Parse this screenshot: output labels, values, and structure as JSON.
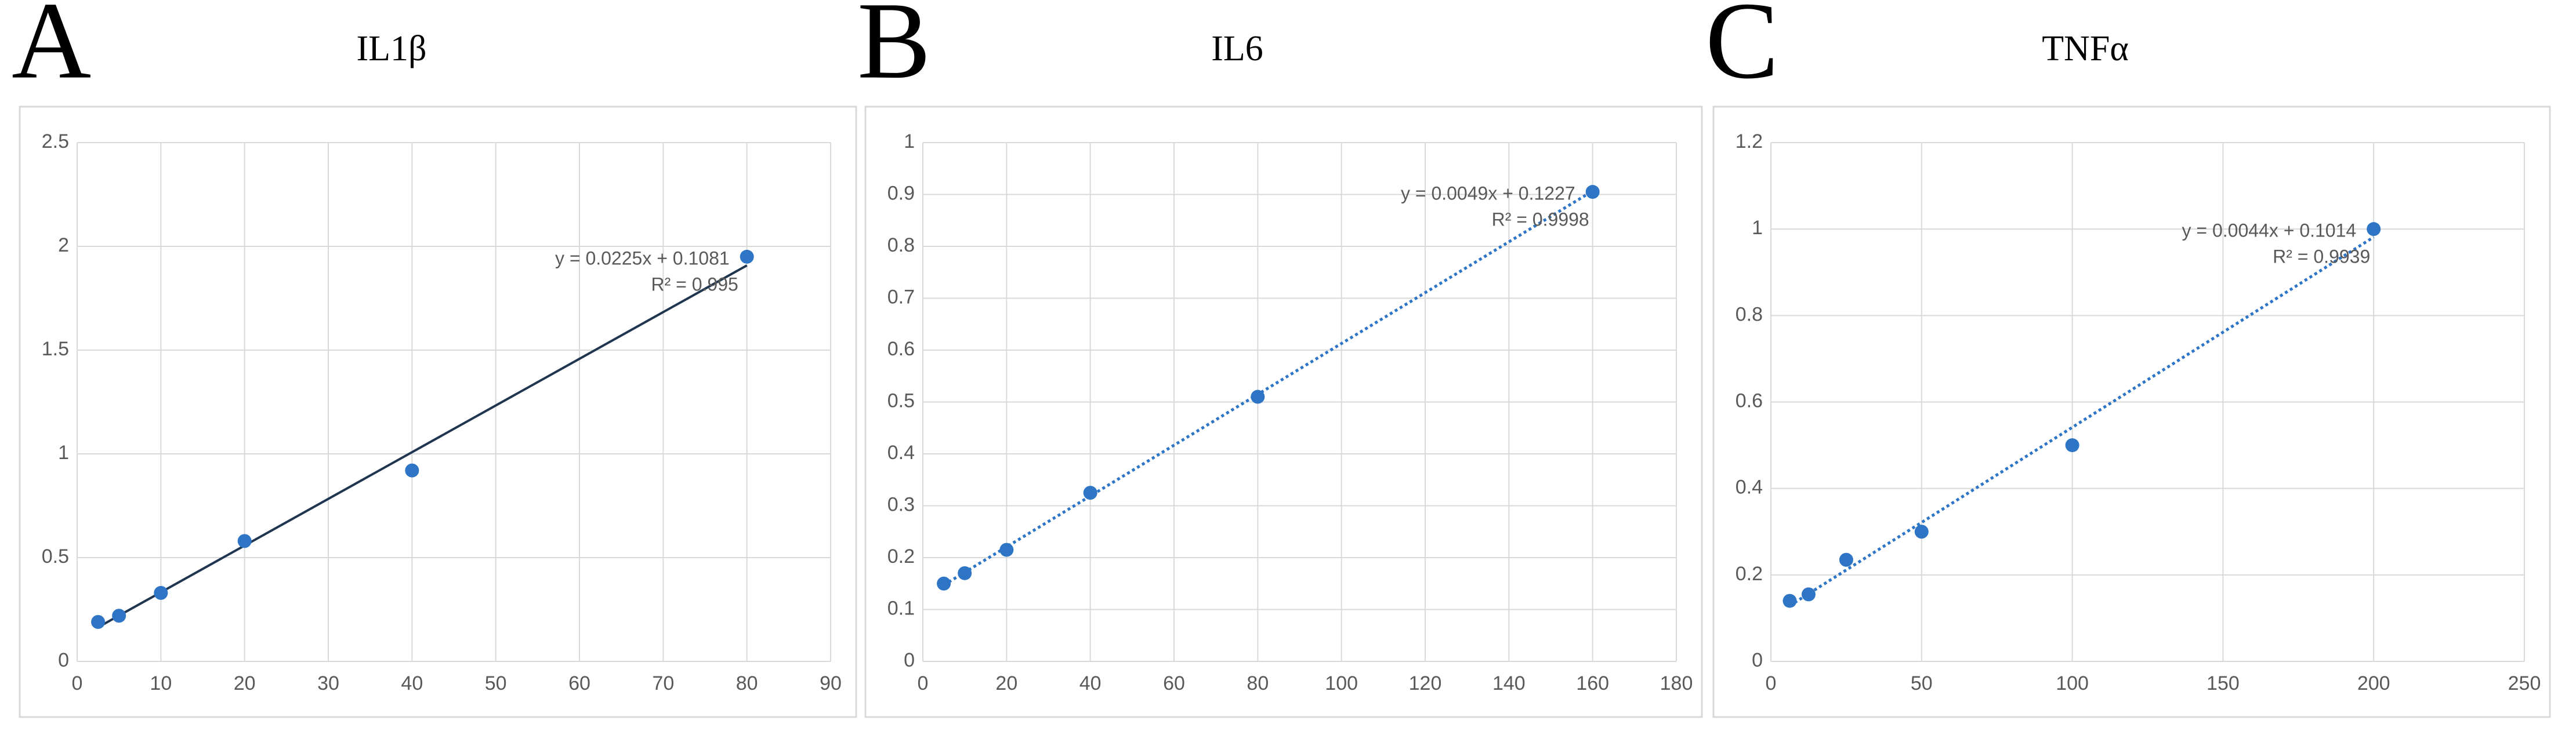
{
  "chart_data": [
    {
      "type": "scatter",
      "panel_label": "A",
      "title": "IL1β",
      "x": [
        2.5,
        5,
        10,
        20,
        40,
        80
      ],
      "values": [
        0.19,
        0.22,
        0.33,
        0.58,
        0.92,
        1.95
      ],
      "color": "#2e75c6",
      "xlim": [
        0,
        90
      ],
      "xticks": [
        0,
        10,
        20,
        30,
        40,
        50,
        60,
        70,
        80,
        90
      ],
      "ylim": [
        0,
        2.5
      ],
      "yticks": [
        0,
        0.5,
        1,
        1.5,
        2,
        2.5
      ],
      "grid": true,
      "trendline": {
        "slope": 0.0225,
        "intercept": 0.1081,
        "label": "y = 0.0225x + 0.1081",
        "r2_label": "R² = 0.995",
        "style": "solid",
        "color": "#1f3550"
      }
    },
    {
      "type": "scatter",
      "panel_label": "B",
      "title": "IL6",
      "x": [
        5,
        10,
        20,
        40,
        80,
        160
      ],
      "values": [
        0.15,
        0.17,
        0.215,
        0.325,
        0.51,
        0.905
      ],
      "color": "#2e75c6",
      "xlim": [
        0,
        180
      ],
      "xticks": [
        0,
        20,
        40,
        60,
        80,
        100,
        120,
        140,
        160,
        180
      ],
      "ylim": [
        0,
        1
      ],
      "yticks": [
        0,
        0.1,
        0.2,
        0.3,
        0.4,
        0.5,
        0.6,
        0.7,
        0.8,
        0.9,
        1
      ],
      "grid": true,
      "trendline": {
        "slope": 0.0049,
        "intercept": 0.1227,
        "label": "y = 0.0049x + 0.1227",
        "r2_label": "R² = 0.9998",
        "style": "dotted",
        "color": "#2e75c6"
      }
    },
    {
      "type": "scatter",
      "panel_label": "C",
      "title": "TNFα",
      "x": [
        6.25,
        12.5,
        25,
        50,
        100,
        200
      ],
      "values": [
        0.14,
        0.155,
        0.235,
        0.3,
        0.5,
        1.0
      ],
      "color": "#2e75c6",
      "xlim": [
        0,
        250
      ],
      "xticks": [
        0,
        50,
        100,
        150,
        200,
        250
      ],
      "ylim": [
        0,
        1.2
      ],
      "yticks": [
        0,
        0.2,
        0.4,
        0.6,
        0.8,
        1,
        1.2
      ],
      "grid": true,
      "trendline": {
        "slope": 0.0044,
        "intercept": 0.1014,
        "label": "y = 0.0044x + 0.1014",
        "r2_label": "R² = 0.9939",
        "style": "dotted",
        "color": "#2e75c6"
      }
    }
  ]
}
